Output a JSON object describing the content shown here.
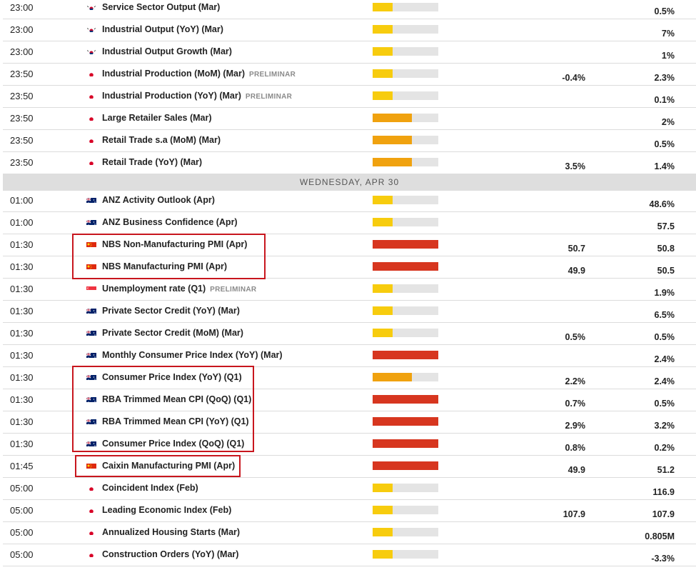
{
  "colors": {
    "low": "#f7cc0e",
    "medium": "#f0a20f",
    "high": "#d7361f",
    "highlight": "#c8161e"
  },
  "day_header": "WEDNESDAY, APR 30",
  "events_before": [
    {
      "time": "23:00",
      "country": "KR",
      "event": "Service Sector Output (Mar)",
      "tag": "",
      "impact": "low",
      "impact_level": 0.3,
      "actual": "",
      "forecast": "0.5%"
    },
    {
      "time": "23:00",
      "country": "KR",
      "event": "Industrial Output (YoY) (Mar)",
      "tag": "",
      "impact": "low",
      "impact_level": 0.3,
      "actual": "",
      "forecast": "7%"
    },
    {
      "time": "23:00",
      "country": "KR",
      "event": "Industrial Output Growth (Mar)",
      "tag": "",
      "impact": "low",
      "impact_level": 0.3,
      "actual": "",
      "forecast": "1%"
    },
    {
      "time": "23:50",
      "country": "JP",
      "event": "Industrial Production (MoM) (Mar)",
      "tag": "PRELIMINAR",
      "impact": "low",
      "impact_level": 0.3,
      "actual": "-0.4%",
      "forecast": "2.3%"
    },
    {
      "time": "23:50",
      "country": "JP",
      "event": "Industrial Production (YoY) (Mar)",
      "tag": "PRELIMINAR",
      "impact": "low",
      "impact_level": 0.3,
      "actual": "",
      "forecast": "0.1%"
    },
    {
      "time": "23:50",
      "country": "JP",
      "event": "Large Retailer Sales (Mar)",
      "tag": "",
      "impact": "medium",
      "impact_level": 0.6,
      "actual": "",
      "forecast": "2%"
    },
    {
      "time": "23:50",
      "country": "JP",
      "event": "Retail Trade s.a (MoM) (Mar)",
      "tag": "",
      "impact": "medium",
      "impact_level": 0.6,
      "actual": "",
      "forecast": "0.5%"
    },
    {
      "time": "23:50",
      "country": "JP",
      "event": "Retail Trade (YoY) (Mar)",
      "tag": "",
      "impact": "medium",
      "impact_level": 0.6,
      "actual": "3.5%",
      "forecast": "1.4%"
    }
  ],
  "events_after": [
    {
      "time": "01:00",
      "country": "AU",
      "event": "ANZ Activity Outlook (Apr)",
      "tag": "",
      "impact": "low",
      "impact_level": 0.3,
      "actual": "",
      "forecast": "48.6%"
    },
    {
      "time": "01:00",
      "country": "AU",
      "event": "ANZ Business Confidence (Apr)",
      "tag": "",
      "impact": "low",
      "impact_level": 0.3,
      "actual": "",
      "forecast": "57.5"
    },
    {
      "time": "01:30",
      "country": "CN",
      "event": "NBS Non-Manufacturing PMI (Apr)",
      "tag": "",
      "impact": "high",
      "impact_level": 1.0,
      "actual": "50.7",
      "forecast": "50.8"
    },
    {
      "time": "01:30",
      "country": "CN",
      "event": "NBS Manufacturing PMI (Apr)",
      "tag": "",
      "impact": "high",
      "impact_level": 1.0,
      "actual": "49.9",
      "forecast": "50.5"
    },
    {
      "time": "01:30",
      "country": "SG",
      "event": "Unemployment rate (Q1)",
      "tag": "PRELIMINAR",
      "impact": "low",
      "impact_level": 0.3,
      "actual": "",
      "forecast": "1.9%"
    },
    {
      "time": "01:30",
      "country": "AU",
      "event": "Private Sector Credit (YoY) (Mar)",
      "tag": "",
      "impact": "low",
      "impact_level": 0.3,
      "actual": "",
      "forecast": "6.5%"
    },
    {
      "time": "01:30",
      "country": "AU",
      "event": "Private Sector Credit (MoM) (Mar)",
      "tag": "",
      "impact": "low",
      "impact_level": 0.3,
      "actual": "0.5%",
      "forecast": "0.5%"
    },
    {
      "time": "01:30",
      "country": "AU",
      "event": "Monthly Consumer Price Index (YoY) (Mar)",
      "tag": "",
      "impact": "high",
      "impact_level": 1.0,
      "actual": "",
      "forecast": "2.4%"
    },
    {
      "time": "01:30",
      "country": "AU",
      "event": "Consumer Price Index (YoY) (Q1)",
      "tag": "",
      "impact": "medium",
      "impact_level": 0.6,
      "actual": "2.2%",
      "forecast": "2.4%"
    },
    {
      "time": "01:30",
      "country": "AU",
      "event": "RBA Trimmed Mean CPI (QoQ) (Q1)",
      "tag": "",
      "impact": "high",
      "impact_level": 1.0,
      "actual": "0.7%",
      "forecast": "0.5%"
    },
    {
      "time": "01:30",
      "country": "AU",
      "event": "RBA Trimmed Mean CPI (YoY) (Q1)",
      "tag": "",
      "impact": "high",
      "impact_level": 1.0,
      "actual": "2.9%",
      "forecast": "3.2%"
    },
    {
      "time": "01:30",
      "country": "AU",
      "event": "Consumer Price Index (QoQ) (Q1)",
      "tag": "",
      "impact": "high",
      "impact_level": 1.0,
      "actual": "0.8%",
      "forecast": "0.2%"
    },
    {
      "time": "01:45",
      "country": "CN",
      "event": "Caixin Manufacturing PMI (Apr)",
      "tag": "",
      "impact": "high",
      "impact_level": 1.0,
      "actual": "49.9",
      "forecast": "51.2"
    },
    {
      "time": "05:00",
      "country": "JP",
      "event": "Coincident Index (Feb)",
      "tag": "",
      "impact": "low",
      "impact_level": 0.3,
      "actual": "",
      "forecast": "116.9"
    },
    {
      "time": "05:00",
      "country": "JP",
      "event": "Leading Economic Index (Feb)",
      "tag": "",
      "impact": "low",
      "impact_level": 0.3,
      "actual": "107.9",
      "forecast": "107.9"
    },
    {
      "time": "05:00",
      "country": "JP",
      "event": "Annualized Housing Starts (Mar)",
      "tag": "",
      "impact": "low",
      "impact_level": 0.3,
      "actual": "",
      "forecast": "0.805M"
    },
    {
      "time": "05:00",
      "country": "JP",
      "event": "Construction Orders (YoY) (Mar)",
      "tag": "",
      "impact": "low",
      "impact_level": 0.3,
      "actual": "",
      "forecast": "-3.3%"
    }
  ]
}
